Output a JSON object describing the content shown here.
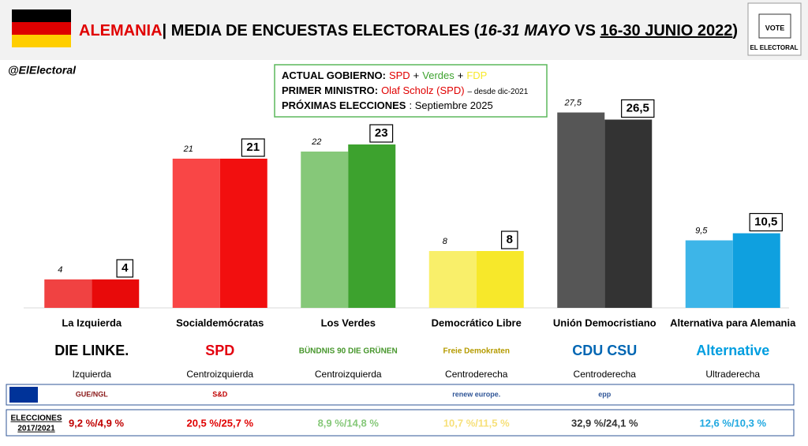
{
  "header": {
    "title_parts": [
      "ALEMANIA",
      "| MEDIA DE ENCUESTAS ELECTORALES (",
      "16-31 MAYO",
      " VS ",
      "16-30 JUNIO 2022",
      ")"
    ],
    "handle": "@ElElectoral",
    "logo": [
      "VOTE",
      "EL ELECTORAL"
    ]
  },
  "info_box": [
    {
      "label": "ACTUAL GOBIERNO:",
      "parts": [
        {
          "text": "SPD",
          "color": "#e00000"
        },
        {
          "text": "+",
          "color": "#000000"
        },
        {
          "text": "Verdes",
          "color": "#3da22e"
        },
        {
          "text": "+",
          "color": "#000000"
        },
        {
          "text": "FDP",
          "color": "#f7e82a"
        }
      ]
    },
    {
      "label": "PRIMER MINISTRO:",
      "parts": [
        {
          "text": "Olaf Scholz (SPD)",
          "color": "#e00000"
        },
        {
          "text": "– desde dic-2021",
          "color": "#000000",
          "small": true
        }
      ]
    },
    {
      "label": "PRÓXIMAS ELECCIONES",
      "parts": [
        {
          "text": ": Septiembre 2025",
          "color": "#000000"
        }
      ]
    }
  ],
  "chart_data": {
    "type": "bar",
    "categories": [
      "La Izquierda",
      "Socialdemócratas",
      "Los Verdes",
      "Democrático Libre",
      "Unión Democristiano",
      "Alternativa para Alemania"
    ],
    "ylim": [
      0,
      30
    ],
    "series": [
      {
        "colors": [
          "#f04242",
          "#f94646",
          "#86c879",
          "#f9ef6a",
          "#565656",
          "#3db5e8"
        ],
        "values": [
          4,
          21,
          22,
          8,
          27.5,
          9.5
        ],
        "value_labels": [
          "4",
          "21",
          "22",
          "8",
          "27,5",
          "9,5"
        ]
      },
      {
        "colors": [
          "#e80a0a",
          "#f20f0f",
          "#3da22e",
          "#f7e82a",
          "#333333",
          "#0fa0df"
        ],
        "values": [
          4,
          21,
          23,
          8,
          26.5,
          10.5
        ],
        "value_labels": [
          "4",
          "21",
          "23",
          "8",
          "26,5",
          "10,5"
        ]
      }
    ]
  },
  "parties": {
    "logos": [
      "DIE LINKE.",
      "SPD",
      "BÜNDNIS 90 DIE GRÜNEN",
      "Freie Demokraten",
      "CDU CSU",
      "Alternative"
    ],
    "ideology": [
      "Izquierda",
      "Centroizquierda",
      "Centroizquierda",
      "Centroderecha",
      "Centroderecha",
      "Ultraderecha"
    ],
    "eu_groups": [
      "GUE/NGL",
      "S&D",
      "renew europe.",
      "epp"
    ]
  },
  "elections": {
    "label": [
      "ELECCIONES",
      "2017/2021"
    ],
    "results": [
      "9,2 %/4,9 %",
      "20,5 %/25,7 %",
      "8,9 %/14,8 %",
      "10,7 %/11,5 %",
      "32,9 %/24,1 %",
      "12,6 %/10,3 %"
    ],
    "colors": [
      "#c00000",
      "#e00000",
      "#86c879",
      "#f7e07a",
      "#333333",
      "#1fa8e0"
    ]
  }
}
